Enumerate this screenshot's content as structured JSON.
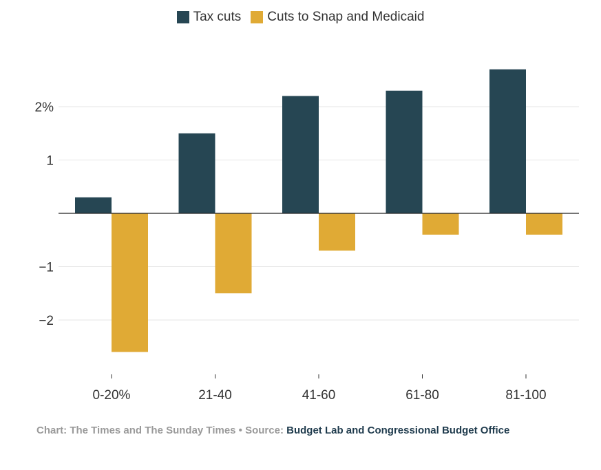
{
  "legend": {
    "tax_label": "Tax cuts",
    "cuts_label": "Cuts to Snap and Medicaid"
  },
  "footer": {
    "prefix": "Chart: The Times and The Sunday Times • Source: ",
    "source": "Budget Lab and Congressional Budget Office"
  },
  "colors": {
    "tax": "#264653",
    "cuts": "#e0aa35",
    "grid": "#e5e5e5",
    "axis": "#222222"
  },
  "chart_data": {
    "type": "bar",
    "categories": [
      "0-20%",
      "21-40",
      "41-60",
      "61-80",
      "81-100"
    ],
    "series": [
      {
        "name": "Tax cuts",
        "values": [
          0.3,
          1.5,
          2.2,
          2.3,
          2.7
        ]
      },
      {
        "name": "Cuts to Snap and Medicaid",
        "values": [
          -2.6,
          -1.5,
          -0.7,
          -0.4,
          -0.4
        ]
      }
    ],
    "yticks": [
      {
        "value": 2,
        "label": "2%"
      },
      {
        "value": 1,
        "label": "1"
      },
      {
        "value": -1,
        "label": "−1"
      },
      {
        "value": -2,
        "label": "−2"
      }
    ],
    "ylim": [
      -3,
      3
    ],
    "xlabel": "",
    "ylabel": "",
    "grid": true,
    "legend_position": "top-center"
  }
}
